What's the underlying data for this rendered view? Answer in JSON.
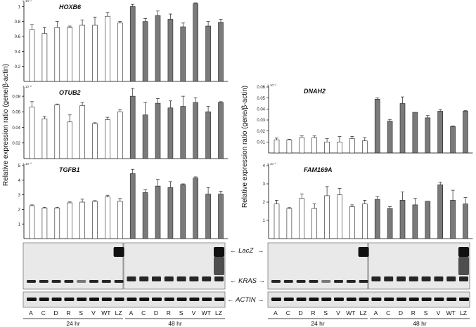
{
  "y_axis_label": "Relative expression ratio (gene/β-actin)",
  "categories": [
    "A",
    "C",
    "D",
    "R",
    "S",
    "V",
    "WT",
    "LZ",
    "A",
    "C",
    "D",
    "R",
    "S",
    "V",
    "WT",
    "LZ"
  ],
  "time_labels": [
    "24 hr",
    "48 hr"
  ],
  "blot_labels": {
    "lacz": "LacZ",
    "kras": "KRAS",
    "actin": "ACTIN"
  },
  "colors": {
    "hr24": "#ffffff",
    "hr48": "#7a7a7a",
    "axis": "#000000"
  },
  "chart_data": [
    {
      "type": "bar",
      "title": "HOXB6",
      "multiplier": "× 10⁻²",
      "ylim": [
        0,
        1.05
      ],
      "yticks": [
        0.2,
        0.4,
        0.6,
        0.8,
        1.0
      ],
      "values": [
        0.69,
        0.64,
        0.72,
        0.72,
        0.75,
        0.75,
        0.87,
        0.78,
        1.0,
        0.8,
        0.88,
        0.83,
        0.73,
        1.04,
        0.74,
        0.79
      ],
      "errors": [
        0.07,
        0.08,
        0.08,
        0.02,
        0.07,
        0.11,
        0.05,
        0.02,
        0.03,
        0.04,
        0.06,
        0.07,
        0.05,
        0.01,
        0.06,
        0.04
      ]
    },
    {
      "type": "bar",
      "title": "OTUB2",
      "multiplier": "× 10⁻²",
      "ylim": [
        0,
        0.09
      ],
      "yticks": [
        0.02,
        0.04,
        0.06,
        0.08
      ],
      "values": [
        0.066,
        0.051,
        0.069,
        0.047,
        0.068,
        0.045,
        0.05,
        0.06,
        0.08,
        0.056,
        0.071,
        0.065,
        0.067,
        0.072,
        0.06,
        0.072
      ],
      "errors": [
        0.007,
        0.003,
        0.001,
        0.009,
        0.004,
        0.001,
        0.003,
        0.003,
        0.01,
        0.016,
        0.006,
        0.009,
        0.013,
        0.006,
        0.007,
        0.001
      ]
    },
    {
      "type": "bar",
      "title": "TGFB1",
      "multiplier": "× 10⁻²",
      "ylim": [
        0,
        5
      ],
      "yticks": [
        1,
        2,
        3,
        4,
        5
      ],
      "values": [
        2.25,
        2.1,
        2.1,
        2.45,
        2.5,
        2.55,
        2.85,
        2.55,
        4.45,
        3.15,
        3.6,
        3.5,
        3.7,
        4.15,
        3.05,
        3.05
      ],
      "errors": [
        0.06,
        0.05,
        0.05,
        0.06,
        0.2,
        0.05,
        0.12,
        0.2,
        0.3,
        0.2,
        0.45,
        0.4,
        0.05,
        0.08,
        0.45,
        0.2
      ]
    },
    {
      "type": "bar",
      "title": "DNAH2",
      "multiplier": "× 10⁻²",
      "ylim": [
        0,
        0.06
      ],
      "yticks": [
        0.01,
        0.02,
        0.03,
        0.04,
        0.05,
        0.06
      ],
      "values": [
        0.012,
        0.012,
        0.014,
        0.014,
        0.01,
        0.01,
        0.013,
        0.011,
        0.049,
        0.029,
        0.045,
        0.037,
        0.032,
        0.038,
        0.024,
        0.038
      ],
      "errors": [
        0.0015,
        0.0005,
        0.0015,
        0.0015,
        0.003,
        0.005,
        0.002,
        0.003,
        0.001,
        0.0015,
        0.006,
        0.0,
        0.002,
        0.0015,
        0.0005,
        0.0005
      ]
    },
    {
      "type": "bar",
      "title": "FAM169A",
      "multiplier": "× 10⁻²",
      "ylim": [
        0,
        4
      ],
      "yticks": [
        1,
        2,
        3,
        4
      ],
      "values": [
        1.9,
        1.65,
        2.2,
        1.65,
        2.35,
        2.4,
        1.75,
        1.9,
        2.15,
        1.65,
        2.1,
        1.85,
        2.05,
        2.95,
        2.1,
        1.9
      ],
      "errors": [
        0.2,
        0.05,
        0.25,
        0.25,
        0.5,
        0.35,
        0.1,
        0.2,
        0.15,
        0.1,
        0.45,
        0.35,
        0.0,
        0.15,
        0.55,
        0.35
      ]
    }
  ]
}
